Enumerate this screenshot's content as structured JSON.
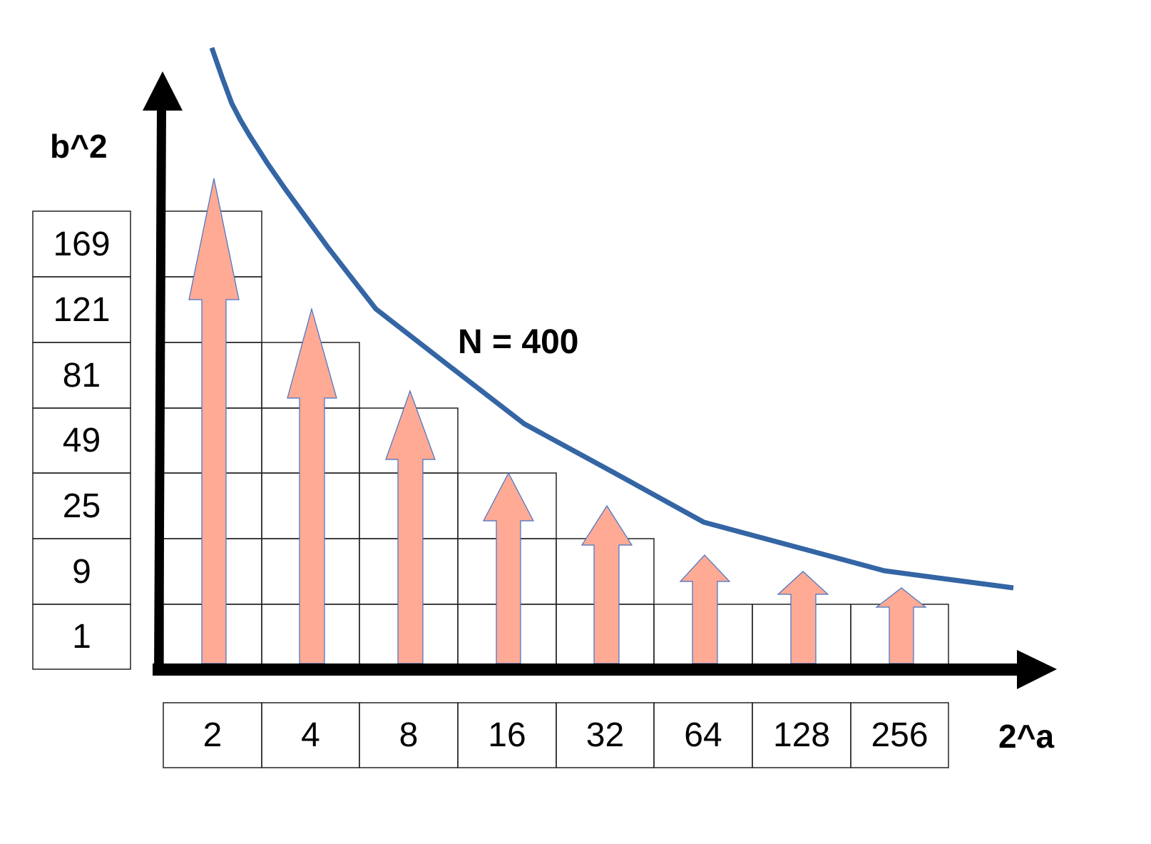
{
  "chart_data": {
    "type": "diagram",
    "title": "",
    "annotation": "N = 400",
    "xlabel": "2^a",
    "ylabel": "b^2",
    "x_ticks": [
      "2",
      "4",
      "8",
      "16",
      "32",
      "64",
      "128",
      "256"
    ],
    "y_ticks": [
      "169",
      "121",
      "81",
      "49",
      "25",
      "9",
      "1"
    ],
    "column_grid_heights": [
      7,
      5,
      4,
      3,
      2,
      1,
      1,
      1
    ],
    "arrows": [
      {
        "x": "2",
        "reaches_b2": "~169+"
      },
      {
        "x": "4",
        "reaches_b2": "~81"
      },
      {
        "x": "8",
        "reaches_b2": "~49"
      },
      {
        "x": "16",
        "reaches_b2": "~25"
      },
      {
        "x": "32",
        "reaches_b2": "~9-25"
      },
      {
        "x": "64",
        "reaches_b2": "~9"
      },
      {
        "x": "128",
        "reaches_b2": "~9"
      },
      {
        "x": "256",
        "reaches_b2": "~1-9"
      }
    ],
    "curve": {
      "label": "N = 400",
      "description": "boundary curve b^2 = N - 2^a decreasing"
    }
  },
  "colors": {
    "axis": "#000000",
    "curve": "#3465a4",
    "arrow_fill": "#ffaa95",
    "arrow_stroke": "#4472c4",
    "grid": "#000000"
  },
  "labels": {
    "ylabel": "b^2",
    "xlabel": "2^a",
    "annotation": "N = 400",
    "y_ticks": [
      "169",
      "121",
      "81",
      "49",
      "25",
      "9",
      "1"
    ],
    "x_ticks": [
      "2",
      "4",
      "8",
      "16",
      "32",
      "64",
      "128",
      "256"
    ]
  }
}
